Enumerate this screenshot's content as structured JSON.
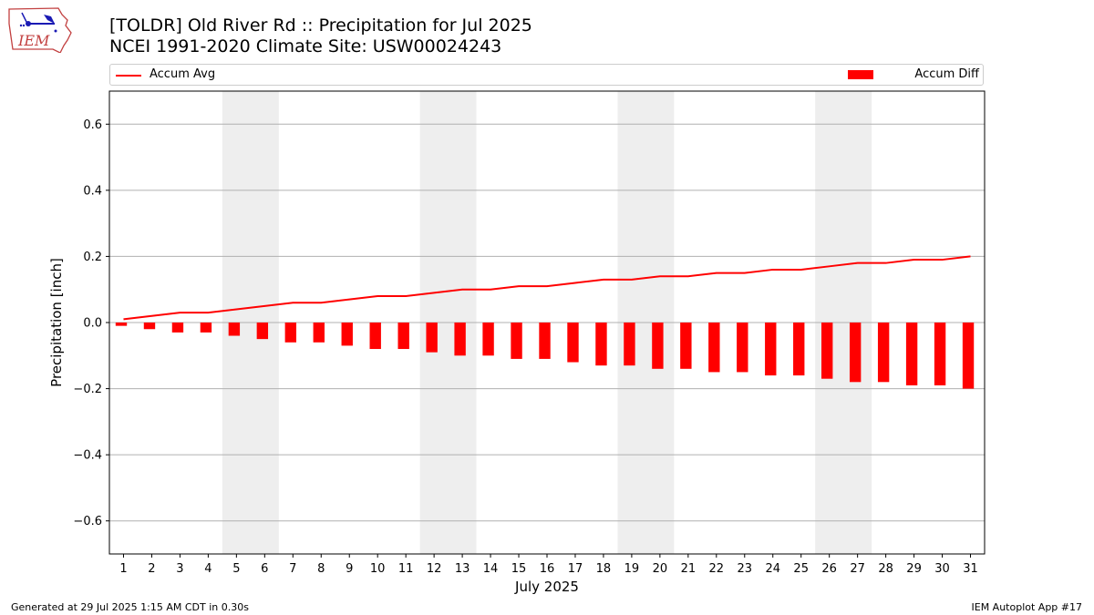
{
  "header": {
    "logo_text": "IEM",
    "title_line1": "[TOLDR] Old River Rd :: Precipitation for Jul 2025",
    "title_line2": "NCEI 1991-2020 Climate Site: USW00024243"
  },
  "legend": {
    "line_label": "Accum Avg",
    "bar_label": "Accum Diff",
    "placement": "top, above plot"
  },
  "footer": {
    "left": "Generated at 29 Jul 2025 1:15 AM CDT in 0.30s",
    "right": "IEM Autoplot App #17"
  },
  "colors": {
    "accent": "#ff0000",
    "weekend_band": "#eeeeee",
    "grid": "#b0b0b0"
  },
  "chart_data": {
    "type": "bar",
    "xlabel": "July 2025",
    "ylabel": "Precipitation [inch]",
    "ylim": [
      -0.7,
      0.7
    ],
    "yticks": [
      -0.6,
      -0.4,
      -0.2,
      0.0,
      0.2,
      0.4,
      0.6
    ],
    "ytick_labels": [
      "−0.6",
      "−0.4",
      "−0.2",
      "0.0",
      "0.2",
      "0.4",
      "0.6"
    ],
    "grid": "horizontal",
    "x": [
      1,
      2,
      3,
      4,
      5,
      6,
      7,
      8,
      9,
      10,
      11,
      12,
      13,
      14,
      15,
      16,
      17,
      18,
      19,
      20,
      21,
      22,
      23,
      24,
      25,
      26,
      27,
      28,
      29,
      30,
      31
    ],
    "weekend_days": [
      [
        5,
        6
      ],
      [
        12,
        13
      ],
      [
        19,
        20
      ],
      [
        26,
        27
      ]
    ],
    "series": [
      {
        "name": "Accum Avg",
        "type": "line",
        "values": [
          0.01,
          0.02,
          0.03,
          0.03,
          0.04,
          0.05,
          0.06,
          0.06,
          0.07,
          0.08,
          0.08,
          0.09,
          0.1,
          0.1,
          0.11,
          0.11,
          0.12,
          0.13,
          0.13,
          0.14,
          0.14,
          0.15,
          0.15,
          0.16,
          0.16,
          0.17,
          0.18,
          0.18,
          0.19,
          0.19,
          0.2
        ]
      },
      {
        "name": "Accum Diff",
        "type": "bar",
        "values": [
          -0.01,
          -0.02,
          -0.03,
          -0.03,
          -0.04,
          -0.05,
          -0.06,
          -0.06,
          -0.07,
          -0.08,
          -0.08,
          -0.09,
          -0.1,
          -0.1,
          -0.11,
          -0.11,
          -0.12,
          -0.13,
          -0.13,
          -0.14,
          -0.14,
          -0.15,
          -0.15,
          -0.16,
          -0.16,
          -0.17,
          -0.18,
          -0.18,
          -0.19,
          -0.19,
          -0.2
        ]
      }
    ]
  }
}
